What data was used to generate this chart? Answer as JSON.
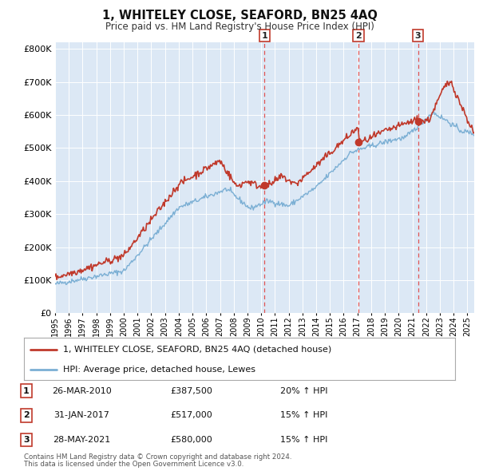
{
  "title": "1, WHITELEY CLOSE, SEAFORD, BN25 4AQ",
  "subtitle": "Price paid vs. HM Land Registry's House Price Index (HPI)",
  "legend_line1": "1, WHITELEY CLOSE, SEAFORD, BN25 4AQ (detached house)",
  "legend_line2": "HPI: Average price, detached house, Lewes",
  "transactions": [
    {
      "num": 1,
      "date": "26-MAR-2010",
      "price": 387500,
      "pct": "20%",
      "year_x": 2010.23
    },
    {
      "num": 2,
      "date": "31-JAN-2017",
      "price": 517000,
      "pct": "15%",
      "year_x": 2017.08
    },
    {
      "num": 3,
      "date": "28-MAY-2021",
      "price": 580000,
      "pct": "15%",
      "year_x": 2021.41
    }
  ],
  "footnote1": "Contains HM Land Registry data © Crown copyright and database right 2024.",
  "footnote2": "This data is licensed under the Open Government Licence v3.0.",
  "hpi_color": "#7bafd4",
  "price_color": "#c0392b",
  "marker_color": "#c0392b",
  "vline_color": "#e05555",
  "bg_chart": "#dce8f5",
  "bg_figure": "#ffffff",
  "ylim": [
    0,
    820000
  ],
  "xlim_start": 1995.0,
  "xlim_end": 2025.5,
  "yticks": [
    0,
    100000,
    200000,
    300000,
    400000,
    500000,
    600000,
    700000,
    800000
  ],
  "ytick_labels": [
    "£0",
    "£100K",
    "£200K",
    "£300K",
    "£400K",
    "£500K",
    "£600K",
    "£700K",
    "£800K"
  ],
  "xtick_years": [
    1995,
    1996,
    1997,
    1998,
    1999,
    2000,
    2001,
    2002,
    2003,
    2004,
    2005,
    2006,
    2007,
    2008,
    2009,
    2010,
    2011,
    2012,
    2013,
    2014,
    2015,
    2016,
    2017,
    2018,
    2019,
    2020,
    2021,
    2022,
    2023,
    2024,
    2025
  ]
}
